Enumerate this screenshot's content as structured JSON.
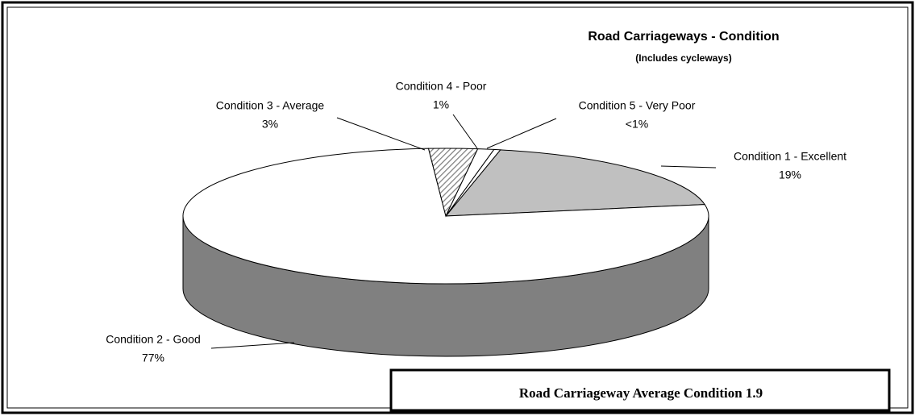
{
  "chart_data": {
    "type": "pie3d",
    "title": "Road Carriageways - Condition",
    "subtitle": "(Includes cycleways)",
    "categories": [
      "Condition 1 - Excellent",
      "Condition 2 - Good",
      "Condition 3 - Average",
      "Condition 4 - Poor",
      "Condition 5 - Very Poor"
    ],
    "values": [
      19,
      77,
      3,
      1,
      0.4
    ],
    "value_labels": [
      "19%",
      "77%",
      "3%",
      "1%",
      "<1%"
    ],
    "colors": [
      "#c0c0c0",
      "#ffffff",
      "#ffffff",
      "#ffffff",
      "#ffffff"
    ],
    "patterns": [
      null,
      null,
      "diagonal",
      null,
      null
    ],
    "annotation": "Road Carriageway Average Condition 1.9"
  }
}
